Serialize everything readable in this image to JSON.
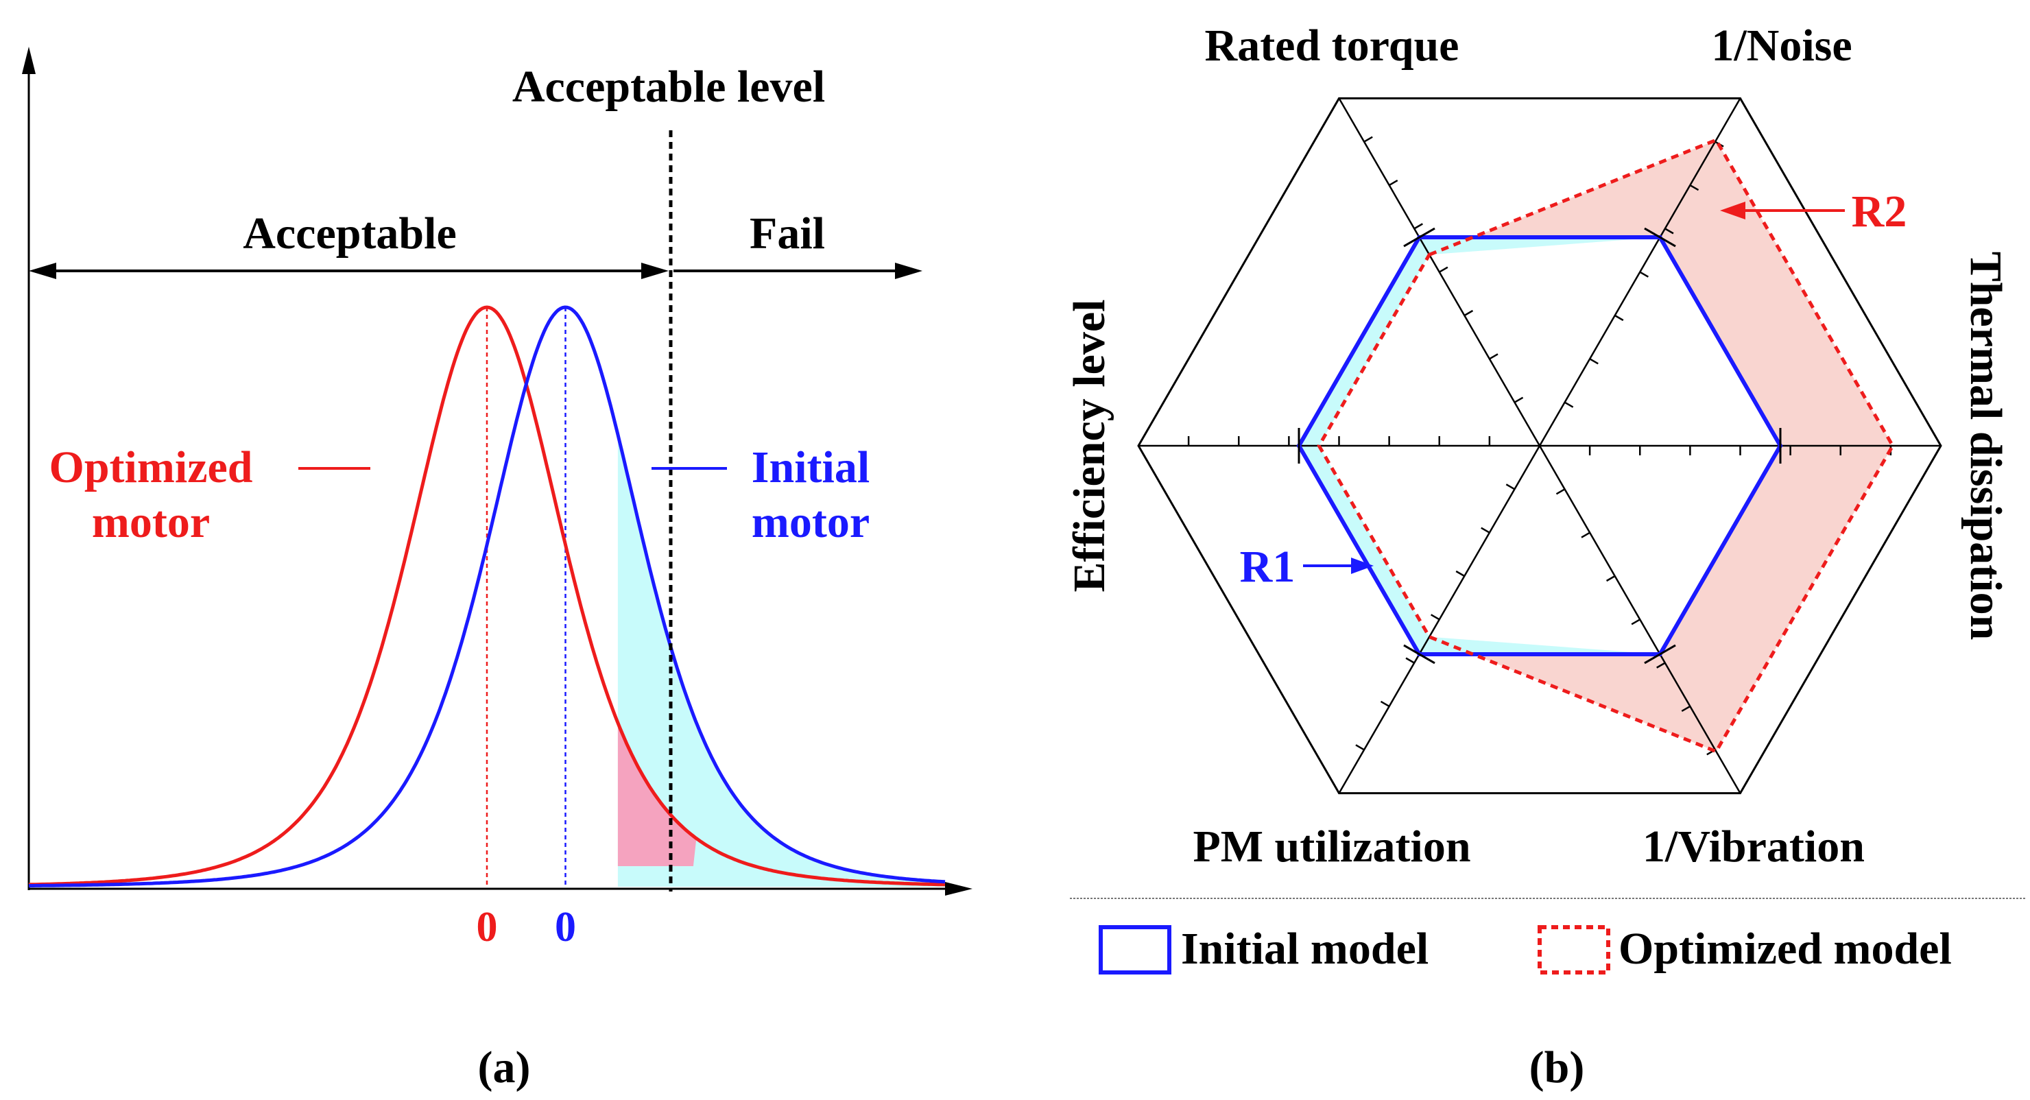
{
  "colors": {
    "initial": "#1a1aff",
    "optimized": "#ee1c1c",
    "cyan_fill": "#c8fbfb",
    "pink_fill": "#f5a3bf",
    "radar_fill": "#f9d5d0",
    "radar_cyan": "#c8fbfb",
    "axis": "#000000"
  },
  "panel_a": {
    "caption": "(a)",
    "acceptable_level_label": "Acceptable level",
    "acceptable_label": "Acceptable",
    "fail_label": "Fail",
    "optimized_label_line1": "Optimized",
    "optimized_label_line2": "motor",
    "initial_label_line1": "Initial",
    "initial_label_line2": "motor",
    "optimized_mean_label": "0",
    "initial_mean_label": "0"
  },
  "panel_b": {
    "caption": "(b)",
    "axis_labels": {
      "rated_torque": "Rated torque",
      "noise": "1/Noise",
      "thermal": "Thermal dissipation",
      "vibration": "1/Vibration",
      "pm_utilization": "PM utilization",
      "efficiency": "Efficiency level"
    },
    "r1_label": "R1",
    "r2_label": "R2",
    "legend_initial": "Initial model",
    "legend_optimized": "Optimized model"
  },
  "chart_data": [
    {
      "type": "line",
      "title": "",
      "xlabel": "",
      "ylabel": "",
      "x_range": [
        -3.5,
        3.5
      ],
      "acceptable_level_x": 1.0,
      "series": [
        {
          "name": "Optimized motor",
          "mean": 0.0,
          "sigma": 1.0,
          "shape": "bell",
          "color": "red"
        },
        {
          "name": "Initial motor",
          "mean": 0.6,
          "sigma": 1.0,
          "shape": "bell",
          "color": "blue"
        }
      ],
      "mean_labels": [
        "0",
        "0"
      ],
      "regions": [
        "Acceptable",
        "Fail"
      ]
    },
    {
      "type": "radar",
      "axes": [
        "Rated torque",
        "1/Noise",
        "Thermal dissipation",
        "1/Vibration",
        "PM utilization",
        "Efficiency level"
      ],
      "ticks_per_axis": 7,
      "scale_max": 1.0,
      "series": [
        {
          "name": "Initial model",
          "values": [
            0.6,
            0.6,
            0.6,
            0.6,
            0.6,
            0.6
          ]
        },
        {
          "name": "Optimized model",
          "values": [
            0.55,
            0.88,
            0.88,
            0.88,
            0.55,
            0.55
          ]
        }
      ],
      "annotations": [
        "R1",
        "R2"
      ]
    }
  ]
}
